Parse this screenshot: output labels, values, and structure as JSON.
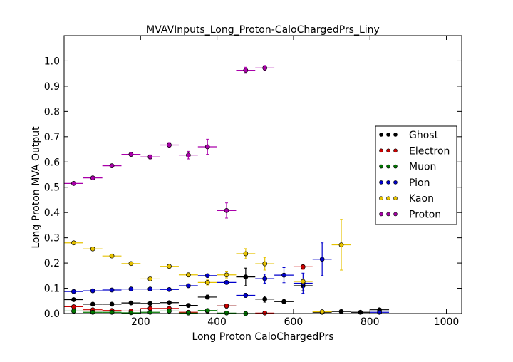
{
  "chart_data": {
    "type": "scatter",
    "title": "MVAVInputs_Long_Proton-CaloChargedPrs_Liny",
    "xlabel": "Long Proton CaloChargedPrs",
    "ylabel": "Long Proton MVA Output",
    "xlim": [
      0,
      1040
    ],
    "ylim": [
      0.0,
      1.1
    ],
    "x_ticks": [
      200,
      400,
      600,
      800,
      1000
    ],
    "y_ticks": [
      0.0,
      0.1,
      0.2,
      0.3,
      0.4,
      0.5,
      0.6,
      0.7,
      0.8,
      0.9,
      1.0
    ],
    "reference_line_y": 1.0,
    "x_error_halfwidth": 25,
    "grid": false,
    "legend_position": "center-right",
    "series": [
      {
        "name": "Ghost",
        "color": "#000000",
        "points": [
          {
            "x": 25,
            "y": 0.055,
            "yerr": 0.005
          },
          {
            "x": 75,
            "y": 0.037,
            "yerr": 0.004
          },
          {
            "x": 125,
            "y": 0.037,
            "yerr": 0.004
          },
          {
            "x": 175,
            "y": 0.042,
            "yerr": 0.004
          },
          {
            "x": 225,
            "y": 0.04,
            "yerr": 0.004
          },
          {
            "x": 275,
            "y": 0.043,
            "yerr": 0.005
          },
          {
            "x": 325,
            "y": 0.032,
            "yerr": 0.005
          },
          {
            "x": 375,
            "y": 0.065,
            "yerr": 0.008
          },
          {
            "x": 425,
            "y": 0.03,
            "yerr": 0.008
          },
          {
            "x": 475,
            "y": 0.145,
            "yerr": 0.035
          },
          {
            "x": 525,
            "y": 0.057,
            "yerr": 0.012
          },
          {
            "x": 575,
            "y": 0.047,
            "yerr": 0.008
          },
          {
            "x": 625,
            "y": 0.11,
            "yerr": 0.02
          },
          {
            "x": 675,
            "y": 0.005,
            "yerr": 0.003
          },
          {
            "x": 725,
            "y": 0.008,
            "yerr": 0.003
          },
          {
            "x": 775,
            "y": 0.005,
            "yerr": 0.002
          },
          {
            "x": 825,
            "y": 0.015,
            "yerr": 0.004
          }
        ]
      },
      {
        "name": "Electron",
        "color": "#cc0000",
        "points": [
          {
            "x": 25,
            "y": 0.027,
            "yerr": 0.003
          },
          {
            "x": 75,
            "y": 0.015,
            "yerr": 0.003
          },
          {
            "x": 125,
            "y": 0.012,
            "yerr": 0.003
          },
          {
            "x": 175,
            "y": 0.01,
            "yerr": 0.003
          },
          {
            "x": 225,
            "y": 0.02,
            "yerr": 0.003
          },
          {
            "x": 275,
            "y": 0.02,
            "yerr": 0.004
          },
          {
            "x": 325,
            "y": 0.005,
            "yerr": 0.003
          },
          {
            "x": 375,
            "y": 0.01,
            "yerr": 0.003
          },
          {
            "x": 425,
            "y": 0.03,
            "yerr": 0.005
          },
          {
            "x": 525,
            "y": 0.002,
            "yerr": 0.002
          },
          {
            "x": 625,
            "y": 0.185,
            "yerr": 0.01
          }
        ]
      },
      {
        "name": "Muon",
        "color": "#007700",
        "points": [
          {
            "x": 25,
            "y": 0.01,
            "yerr": 0.002
          },
          {
            "x": 75,
            "y": 0.005,
            "yerr": 0.002
          },
          {
            "x": 125,
            "y": 0.005,
            "yerr": 0.002
          },
          {
            "x": 175,
            "y": 0.003,
            "yerr": 0.002
          },
          {
            "x": 225,
            "y": 0.005,
            "yerr": 0.002
          },
          {
            "x": 275,
            "y": 0.01,
            "yerr": 0.002
          },
          {
            "x": 325,
            "y": 0.002,
            "yerr": 0.002
          },
          {
            "x": 375,
            "y": 0.012,
            "yerr": 0.003
          },
          {
            "x": 425,
            "y": 0.002,
            "yerr": 0.002
          },
          {
            "x": 475,
            "y": 0.0,
            "yerr": 0.001
          }
        ]
      },
      {
        "name": "Pion",
        "color": "#0000cc",
        "points": [
          {
            "x": 25,
            "y": 0.087,
            "yerr": 0.004
          },
          {
            "x": 75,
            "y": 0.09,
            "yerr": 0.004
          },
          {
            "x": 125,
            "y": 0.093,
            "yerr": 0.004
          },
          {
            "x": 175,
            "y": 0.097,
            "yerr": 0.004
          },
          {
            "x": 225,
            "y": 0.097,
            "yerr": 0.004
          },
          {
            "x": 275,
            "y": 0.095,
            "yerr": 0.005
          },
          {
            "x": 325,
            "y": 0.11,
            "yerr": 0.005
          },
          {
            "x": 375,
            "y": 0.15,
            "yerr": 0.006
          },
          {
            "x": 425,
            "y": 0.123,
            "yerr": 0.007
          },
          {
            "x": 475,
            "y": 0.072,
            "yerr": 0.008
          },
          {
            "x": 525,
            "y": 0.138,
            "yerr": 0.018
          },
          {
            "x": 575,
            "y": 0.152,
            "yerr": 0.03
          },
          {
            "x": 625,
            "y": 0.12,
            "yerr": 0.04
          },
          {
            "x": 675,
            "y": 0.215,
            "yerr": 0.065
          },
          {
            "x": 825,
            "y": 0.005,
            "yerr": 0.003
          }
        ]
      },
      {
        "name": "Kaon",
        "color": "#e6c200",
        "points": [
          {
            "x": 25,
            "y": 0.28,
            "yerr": 0.005
          },
          {
            "x": 75,
            "y": 0.256,
            "yerr": 0.005
          },
          {
            "x": 125,
            "y": 0.228,
            "yerr": 0.005
          },
          {
            "x": 175,
            "y": 0.198,
            "yerr": 0.005
          },
          {
            "x": 225,
            "y": 0.137,
            "yerr": 0.006
          },
          {
            "x": 275,
            "y": 0.187,
            "yerr": 0.007
          },
          {
            "x": 325,
            "y": 0.153,
            "yerr": 0.008
          },
          {
            "x": 375,
            "y": 0.123,
            "yerr": 0.01
          },
          {
            "x": 425,
            "y": 0.153,
            "yerr": 0.012
          },
          {
            "x": 475,
            "y": 0.237,
            "yerr": 0.02
          },
          {
            "x": 525,
            "y": 0.197,
            "yerr": 0.025
          },
          {
            "x": 625,
            "y": 0.127,
            "yerr": 0.01
          },
          {
            "x": 675,
            "y": 0.007,
            "yerr": 0.003
          },
          {
            "x": 725,
            "y": 0.272,
            "yerr": 0.1
          }
        ]
      },
      {
        "name": "Proton",
        "color": "#aa00aa",
        "points": [
          {
            "x": 25,
            "y": 0.515,
            "yerr": 0.005
          },
          {
            "x": 75,
            "y": 0.537,
            "yerr": 0.005
          },
          {
            "x": 125,
            "y": 0.585,
            "yerr": 0.006
          },
          {
            "x": 175,
            "y": 0.63,
            "yerr": 0.007
          },
          {
            "x": 225,
            "y": 0.62,
            "yerr": 0.008
          },
          {
            "x": 275,
            "y": 0.667,
            "yerr": 0.01
          },
          {
            "x": 325,
            "y": 0.627,
            "yerr": 0.015
          },
          {
            "x": 375,
            "y": 0.66,
            "yerr": 0.03
          },
          {
            "x": 425,
            "y": 0.408,
            "yerr": 0.03
          },
          {
            "x": 475,
            "y": 0.963,
            "yerr": 0.012
          },
          {
            "x": 525,
            "y": 0.972,
            "yerr": 0.01
          }
        ]
      }
    ]
  }
}
